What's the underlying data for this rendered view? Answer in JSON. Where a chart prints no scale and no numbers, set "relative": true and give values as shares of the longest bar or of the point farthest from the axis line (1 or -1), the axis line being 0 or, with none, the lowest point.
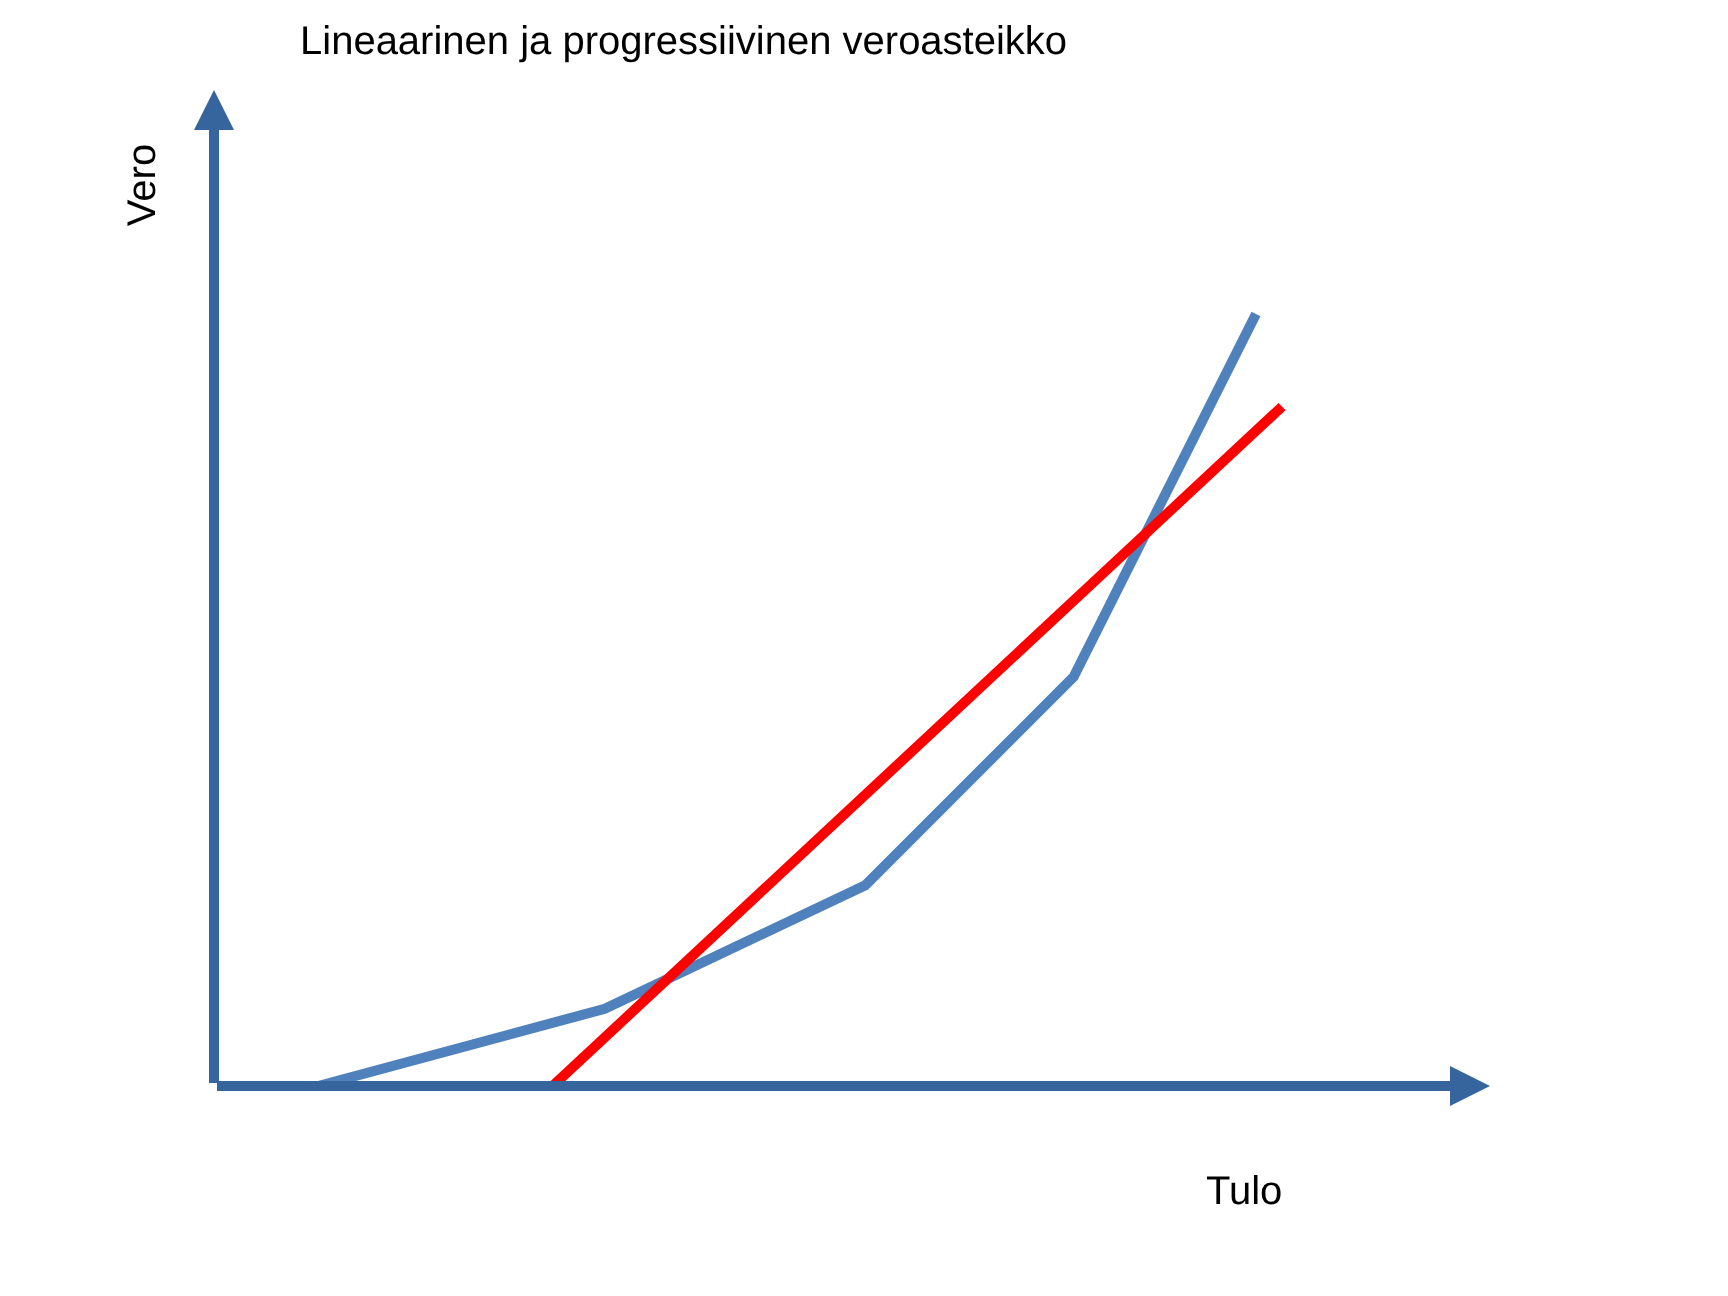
{
  "chart_data": {
    "type": "line",
    "title": "Lineaarinen ja progressiivinen veroasteikko",
    "xlabel": "Tulo",
    "ylabel": "Vero",
    "relative": true,
    "marker": "none",
    "line_style": "solid",
    "categories": [
      null,
      null,
      null,
      null,
      null,
      null,
      null,
      null,
      null,
      null,
      null,
      null,
      null,
      null,
      null,
      null,
      null,
      null,
      null,
      null,
      null,
      null,
      null,
      null,
      null,
      null,
      null,
      null,
      null,
      null,
      null,
      null,
      null,
      null,
      null,
      null,
      null,
      null,
      null,
      null,
      null,
      null
    ],
    "series": [
      {
        "color": "#4f81bd",
        "values": [
          null,
          null,
          null,
          null,
          0,
          null,
          null,
          null,
          null,
          null,
          null,
          null,
          null,
          null,
          null,
          0.1,
          null,
          null,
          null,
          null,
          null,
          null,
          null,
          null,
          null,
          0.26,
          null,
          null,
          null,
          null,
          null,
          null,
          null,
          0.53,
          null,
          null,
          null,
          null,
          null,
          null,
          1,
          null
        ]
      },
      {
        "color": "#ff0000",
        "values": [
          null,
          null,
          null,
          null,
          null,
          null,
          null,
          null,
          null,
          null,
          null,
          null,
          null,
          0,
          null,
          null,
          null,
          null,
          null,
          null,
          null,
          null,
          null,
          null,
          null,
          null,
          null,
          null,
          null,
          null,
          null,
          null,
          null,
          null,
          null,
          null,
          null,
          null,
          null,
          null,
          null,
          0.88
        ]
      }
    ]
  }
}
